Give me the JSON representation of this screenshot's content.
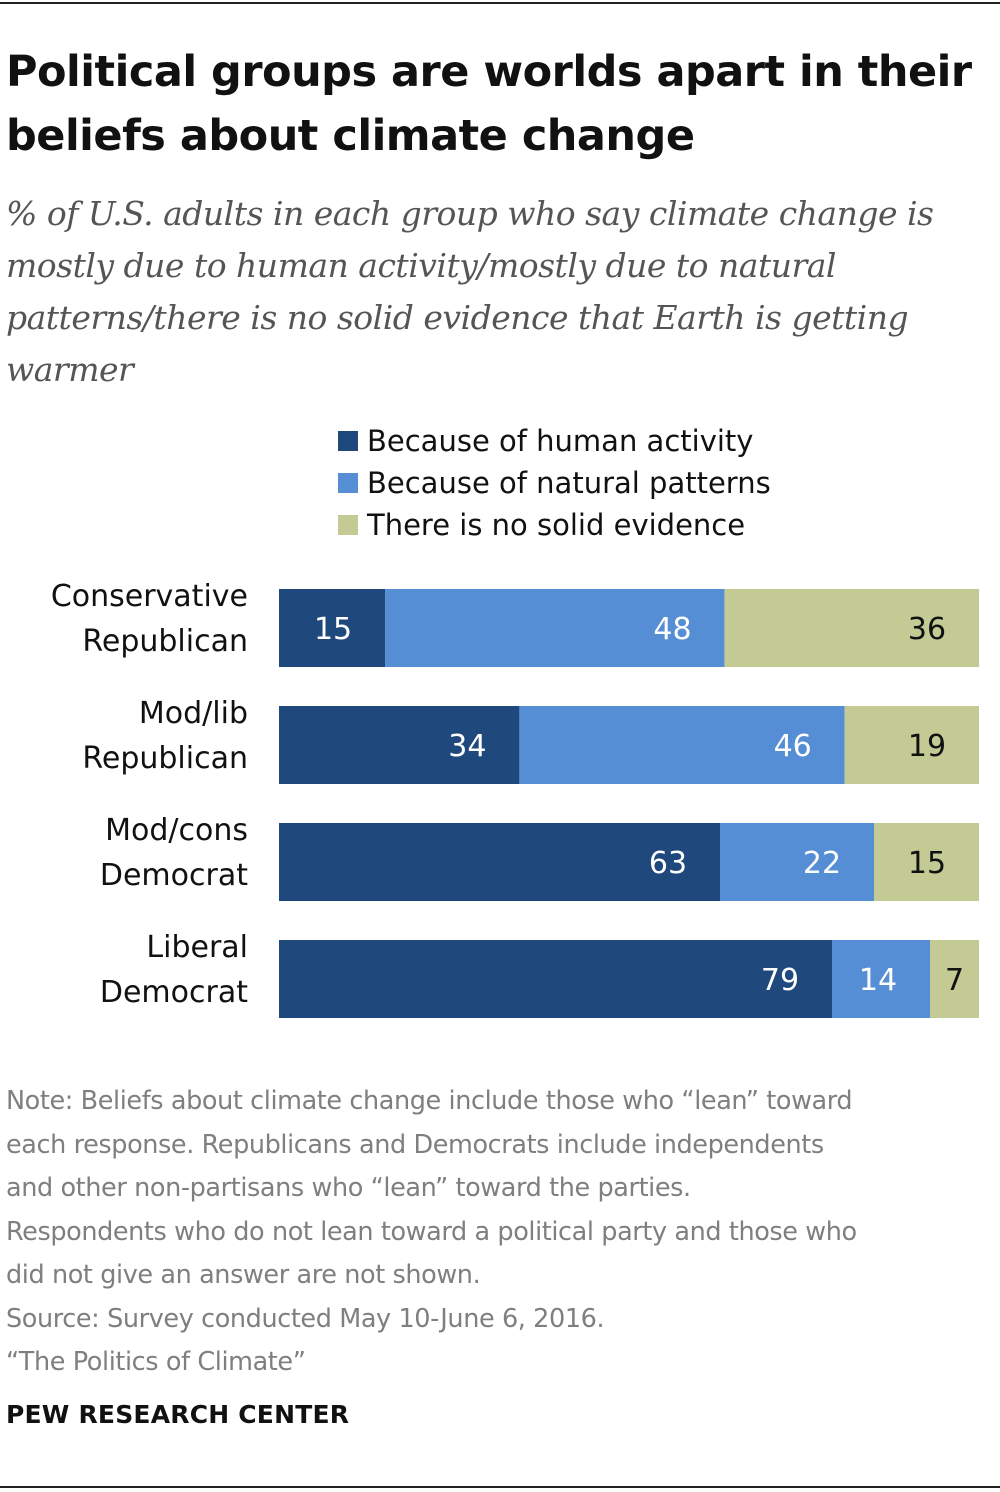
{
  "title_lines": [
    "Political groups are worlds apart in their",
    "beliefs about climate change"
  ],
  "subtitle_lines": [
    "% of U.S. adults in each group who say climate change is",
    "mostly due to human activity/mostly due to natural",
    "patterns/there is no solid evidence that Earth is getting",
    "warmer"
  ],
  "note_lines": [
    "Note: Beliefs about climate change include those who “lean” toward",
    "each response. Republicans and Democrats include independents",
    "and other non-partisans who “lean” toward the parties.",
    "Respondents who do not lean toward a political party and those who",
    "did not give an answer are not shown."
  ],
  "source": "Source: Survey conducted May 10-June 6, 2016.",
  "report": "“The Politics of Climate”",
  "brand": "PEW RESEARCH CENTER",
  "chart_data": {
    "type": "bar",
    "orientation": "horizontal",
    "stacked": true,
    "xlim": [
      0,
      100
    ],
    "legend_position": "top",
    "categories": [
      [
        "Conservative",
        "Republican"
      ],
      [
        "Mod/lib",
        "Republican"
      ],
      [
        "Mod/cons",
        "Democrat"
      ],
      [
        "Liberal",
        "Democrat"
      ]
    ],
    "series": [
      {
        "name": "Because of human activity",
        "color": "#1f497d",
        "label_color": "#ffffff",
        "values": [
          15,
          34,
          63,
          79
        ]
      },
      {
        "name": "Because of natural patterns",
        "color": "#558ed5",
        "label_color": "#ffffff",
        "values": [
          48,
          46,
          22,
          14
        ]
      },
      {
        "name": "There is no solid evidence",
        "color": "#c3ca94",
        "label_color": "#111111",
        "values": [
          36,
          19,
          15,
          7
        ]
      }
    ]
  }
}
